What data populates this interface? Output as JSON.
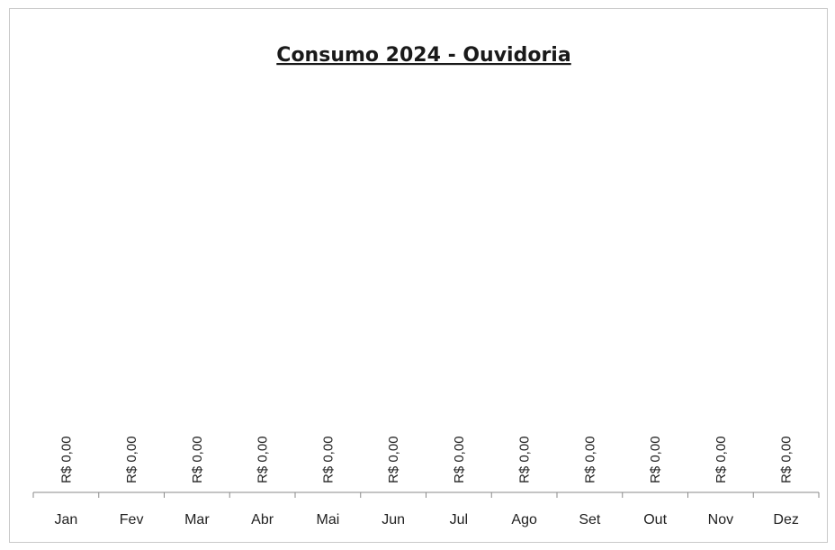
{
  "chart_data": {
    "type": "bar",
    "title": "Consumo 2024 - Ouvidoria",
    "xlabel": "",
    "ylabel": "",
    "categories": [
      "Jan",
      "Fev",
      "Mar",
      "Abr",
      "Mai",
      "Jun",
      "Jul",
      "Ago",
      "Set",
      "Out",
      "Nov",
      "Dez"
    ],
    "values": [
      0,
      0,
      0,
      0,
      0,
      0,
      0,
      0,
      0,
      0,
      0,
      0
    ],
    "data_labels": [
      "R$ 0,00",
      "R$ 0,00",
      "R$ 0,00",
      "R$ 0,00",
      "R$ 0,00",
      "R$ 0,00",
      "R$ 0,00",
      "R$ 0,00",
      "R$ 0,00",
      "R$ 0,00",
      "R$ 0,00",
      "R$ 0,00"
    ],
    "grid": false,
    "legend": "none"
  }
}
